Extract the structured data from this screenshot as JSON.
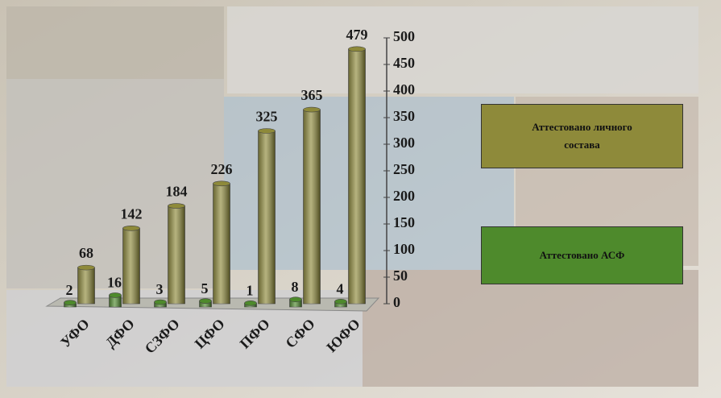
{
  "chart_data": {
    "type": "bar3d",
    "categories": [
      "УФО",
      "ДФО",
      "СЗФО",
      "ЦФО",
      "ПФО",
      "СФО",
      "ЮФО"
    ],
    "series": [
      {
        "name": "Аттестовано личного состава",
        "color": "#8e8a3a",
        "values": [
          68,
          142,
          184,
          226,
          325,
          365,
          479
        ]
      },
      {
        "name": "Аттестовано АСФ",
        "color": "#4e8a2c",
        "values": [
          2,
          16,
          3,
          5,
          1,
          8,
          4
        ]
      }
    ],
    "ylim": [
      0,
      500
    ],
    "yticks": [
      0,
      50,
      100,
      150,
      200,
      250,
      300,
      350,
      400,
      450,
      500
    ],
    "y_axis_side": "right",
    "legend": "right"
  }
}
